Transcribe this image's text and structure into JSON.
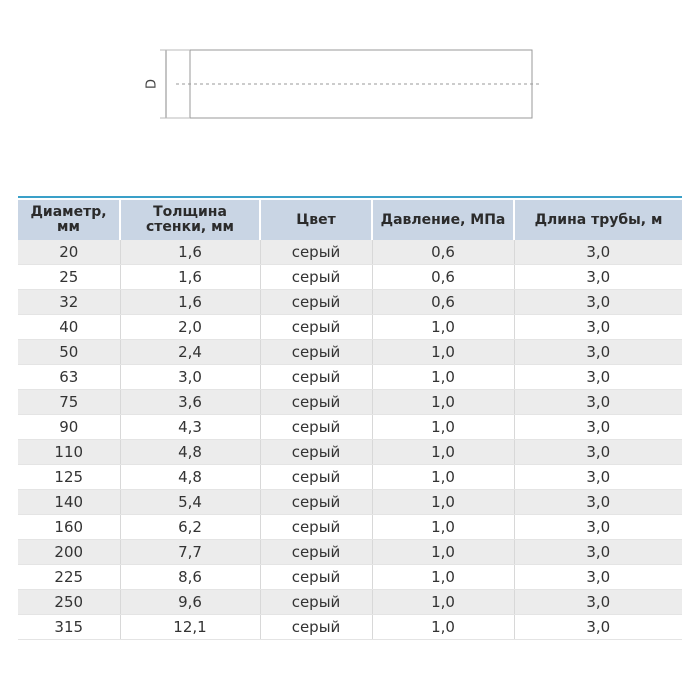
{
  "diagram": {
    "dimension_label": "D"
  },
  "table": {
    "header": [
      "Диаметр, мм",
      "Толщина стенки, мм",
      "Цвет",
      "Давление, МПа",
      "Длина трубы, м"
    ],
    "rows": [
      [
        "20",
        "1,6",
        "серый",
        "0,6",
        "3,0"
      ],
      [
        "25",
        "1,6",
        "серый",
        "0,6",
        "3,0"
      ],
      [
        "32",
        "1,6",
        "серый",
        "0,6",
        "3,0"
      ],
      [
        "40",
        "2,0",
        "серый",
        "1,0",
        "3,0"
      ],
      [
        "50",
        "2,4",
        "серый",
        "1,0",
        "3,0"
      ],
      [
        "63",
        "3,0",
        "серый",
        "1,0",
        "3,0"
      ],
      [
        "75",
        "3,6",
        "серый",
        "1,0",
        "3,0"
      ],
      [
        "90",
        "4,3",
        "серый",
        "1,0",
        "3,0"
      ],
      [
        "110",
        "4,8",
        "серый",
        "1,0",
        "3,0"
      ],
      [
        "125",
        "4,8",
        "серый",
        "1,0",
        "3,0"
      ],
      [
        "140",
        "5,4",
        "серый",
        "1,0",
        "3,0"
      ],
      [
        "160",
        "6,2",
        "серый",
        "1,0",
        "3,0"
      ],
      [
        "200",
        "7,7",
        "серый",
        "1,0",
        "3,0"
      ],
      [
        "225",
        "8,6",
        "серый",
        "1,0",
        "3,0"
      ],
      [
        "250",
        "9,6",
        "серый",
        "1,0",
        "3,0"
      ],
      [
        "315",
        "12,1",
        "серый",
        "1,0",
        "3,0"
      ]
    ]
  }
}
